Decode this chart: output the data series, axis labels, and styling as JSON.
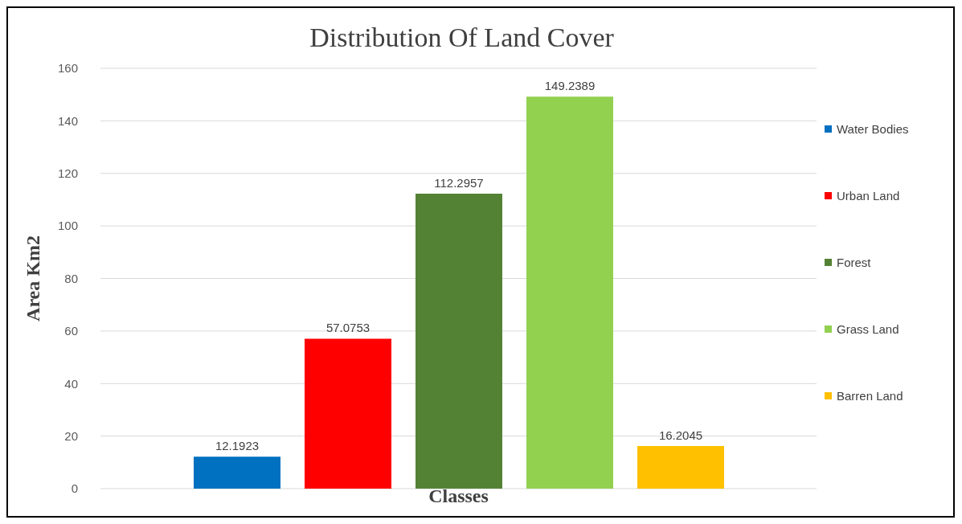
{
  "chart_data": {
    "type": "bar",
    "title": "Distribution Of Land Cover",
    "xlabel": "Classes",
    "ylabel": "Area Km2",
    "categories": [
      null
    ],
    "series": [
      {
        "name": "Water Bodies",
        "color": "#0070c0",
        "values": [
          12.1923
        ]
      },
      {
        "name": "Urban Land",
        "color": "#ff0000",
        "values": [
          57.0753
        ]
      },
      {
        "name": "Forest",
        "color": "#548235",
        "values": [
          112.2957
        ]
      },
      {
        "name": "Grass Land",
        "color": "#92d050",
        "values": [
          149.2389
        ]
      },
      {
        "name": "Barren Land",
        "color": "#ffc000",
        "values": [
          16.2045
        ]
      }
    ],
    "ylim": [
      0,
      160
    ],
    "yticks": [
      0,
      20,
      40,
      60,
      80,
      100,
      120,
      140,
      160
    ],
    "grid": "y",
    "legend": "right",
    "data_labels": true
  }
}
